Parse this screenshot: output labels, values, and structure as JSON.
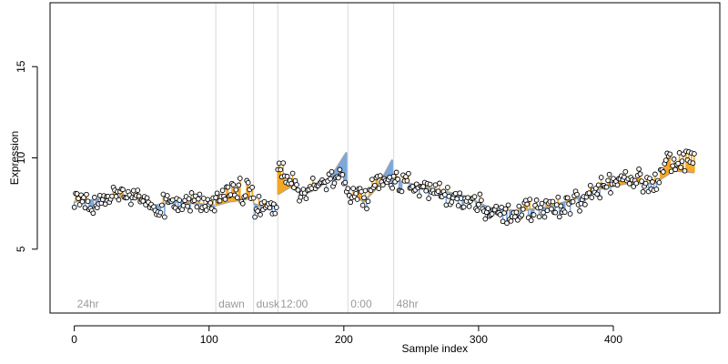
{
  "chart_data": {
    "type": "scatter",
    "xlabel": "Sample index",
    "ylabel": "Expression",
    "xlim": [
      -18,
      479
    ],
    "ylim": [
      1.5,
      18.5
    ],
    "x_ticks": [
      0,
      100,
      200,
      300,
      400
    ],
    "y_ticks": [
      5,
      10,
      15
    ],
    "grid": false,
    "colors": {
      "point_fill": "#ffffff",
      "point_stroke": "#000000",
      "residual_above": "#f5a623",
      "residual_below": "#7aa6dc",
      "fitted_line": "#a6a6a6",
      "divider": "#d9d9d9",
      "section_label": "#9a9a9a"
    },
    "sections": [
      {
        "label": "24hr",
        "start": 0
      },
      {
        "label": "dawn",
        "start": 105
      },
      {
        "label": "dusk",
        "start": 133
      },
      {
        "label": "12:00",
        "start": 151
      },
      {
        "label": "0:00",
        "start": 203
      },
      {
        "label": "48hr",
        "start": 237
      }
    ],
    "fitted_segments": [
      {
        "x": [
          0,
          15,
          30,
          45,
          60,
          75,
          90,
          104
        ],
        "y": [
          7.6,
          7.7,
          7.9,
          7.8,
          7.4,
          7.6,
          7.5,
          7.4
        ]
      },
      {
        "x": [
          105,
          115,
          125,
          132
        ],
        "y": [
          7.4,
          7.6,
          7.7,
          7.8
        ]
      },
      {
        "x": [
          133,
          140,
          150
        ],
        "y": [
          7.5,
          7.3,
          7.5
        ]
      },
      {
        "x": [
          151,
          160,
          170,
          180,
          190,
          202
        ],
        "y": [
          8.0,
          8.4,
          8.0,
          8.3,
          8.9,
          10.3
        ]
      },
      {
        "x": [
          203,
          215,
          225,
          236
        ],
        "y": [
          8.1,
          7.6,
          8.4,
          9.9
        ]
      },
      {
        "x": [
          237,
          260,
          290,
          310,
          330,
          350,
          370,
          390,
          410,
          430,
          445,
          460
        ],
        "y": [
          8.8,
          8.4,
          7.9,
          7.2,
          7.1,
          7.3,
          7.7,
          8.3,
          8.6,
          8.6,
          9.3,
          9.2
        ]
      }
    ],
    "profile": {
      "x": [
        0,
        15,
        30,
        45,
        60,
        75,
        90,
        104,
        105,
        132,
        133,
        150,
        151,
        160,
        170,
        180,
        190,
        200,
        203,
        215,
        225,
        236,
        237,
        260,
        290,
        310,
        330,
        350,
        370,
        380,
        390,
        410,
        430,
        440,
        450,
        460
      ],
      "y": [
        7.5,
        7.3,
        8.0,
        7.8,
        7.3,
        7.6,
        7.6,
        7.3,
        7.9,
        8.3,
        7.4,
        7.4,
        9.4,
        8.9,
        7.9,
        8.5,
        8.9,
        9.2,
        8.0,
        7.7,
        8.6,
        8.8,
        8.7,
        8.3,
        7.7,
        7.0,
        7.0,
        7.2,
        7.5,
        7.8,
        8.4,
        9.0,
        8.4,
        9.7,
        9.9,
        9.8
      ]
    },
    "noise_amplitude": 0.45,
    "n_points": 461
  }
}
